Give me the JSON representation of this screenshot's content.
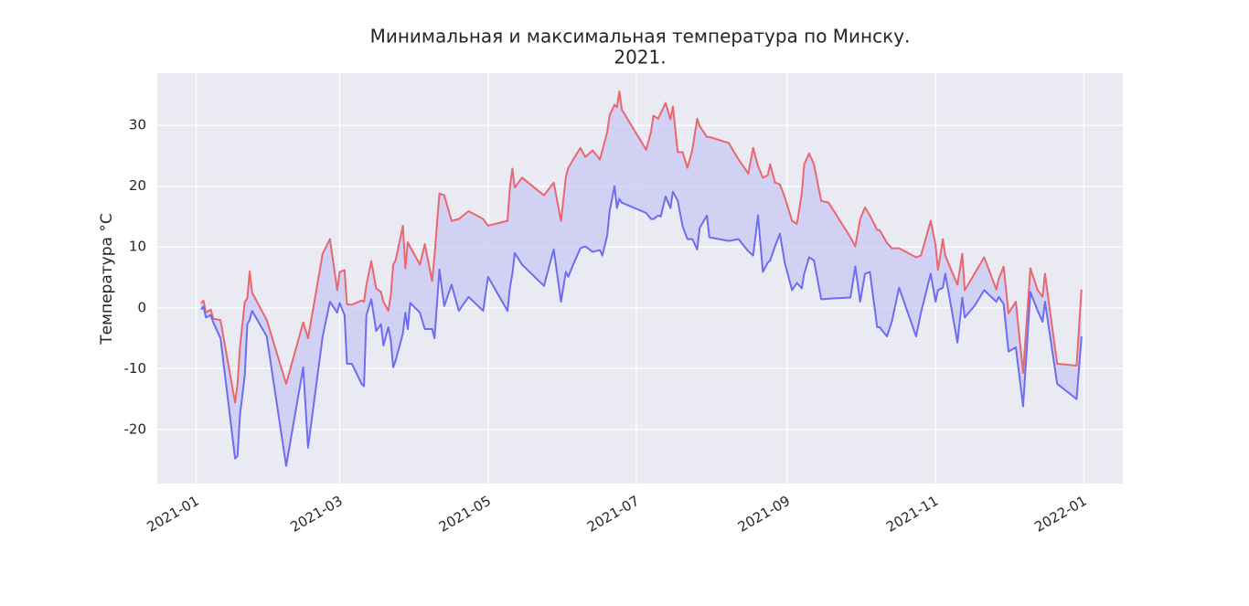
{
  "chart_data": {
    "type": "line",
    "title": [
      "Минимальная и максимальная температура по Минску.",
      "2021."
    ],
    "ylabel": "Температура °C",
    "fill_between": true,
    "fill_color": "#c8c8f4",
    "grid": true,
    "x": [
      "2021-01-03",
      "2021-01-04",
      "2021-01-05",
      "2021-01-07",
      "2021-01-08",
      "2021-01-11",
      "2021-01-17",
      "2021-01-18",
      "2021-01-19",
      "2021-01-21",
      "2021-01-22",
      "2021-01-23",
      "2021-01-24",
      "2021-01-30",
      "2021-02-07",
      "2021-02-14",
      "2021-02-16",
      "2021-02-22",
      "2021-02-25",
      "2021-02-28",
      "2021-03-01",
      "2021-03-03",
      "2021-03-04",
      "2021-03-06",
      "2021-03-10",
      "2021-03-11",
      "2021-03-12",
      "2021-03-14",
      "2021-03-16",
      "2021-03-18",
      "2021-03-19",
      "2021-03-21",
      "2021-03-22",
      "2021-03-23",
      "2021-03-24",
      "2021-03-27",
      "2021-03-28",
      "2021-03-29",
      "2021-03-30",
      "2021-04-03",
      "2021-04-05",
      "2021-04-08",
      "2021-04-09",
      "2021-04-11",
      "2021-04-13",
      "2021-04-16",
      "2021-04-19",
      "2021-04-23",
      "2021-04-29",
      "2021-05-01",
      "2021-05-09",
      "2021-05-10",
      "2021-05-11",
      "2021-05-12",
      "2021-05-15",
      "2021-05-24",
      "2021-05-28",
      "2021-05-31",
      "2021-06-02",
      "2021-06-03",
      "2021-06-05",
      "2021-06-08",
      "2021-06-10",
      "2021-06-13",
      "2021-06-16",
      "2021-06-17",
      "2021-06-19",
      "2021-06-20",
      "2021-06-22",
      "2021-06-23",
      "2021-06-24",
      "2021-06-25",
      "2021-07-05",
      "2021-07-07",
      "2021-07-08",
      "2021-07-10",
      "2021-07-11",
      "2021-07-13",
      "2021-07-15",
      "2021-07-16",
      "2021-07-18",
      "2021-07-20",
      "2021-07-22",
      "2021-07-24",
      "2021-07-26",
      "2021-07-27",
      "2021-07-30",
      "2021-07-31",
      "2021-08-08",
      "2021-08-12",
      "2021-08-16",
      "2021-08-18",
      "2021-08-20",
      "2021-08-22",
      "2021-08-24",
      "2021-08-25",
      "2021-08-27",
      "2021-08-29",
      "2021-08-31",
      "2021-09-03",
      "2021-09-05",
      "2021-09-07",
      "2021-09-08",
      "2021-09-10",
      "2021-09-12",
      "2021-09-15",
      "2021-09-18",
      "2021-09-27",
      "2021-09-29",
      "2021-10-01",
      "2021-10-03",
      "2021-10-05",
      "2021-10-08",
      "2021-10-09",
      "2021-10-12",
      "2021-10-14",
      "2021-10-17",
      "2021-10-24",
      "2021-10-26",
      "2021-10-30",
      "2021-11-01",
      "2021-11-02",
      "2021-11-04",
      "2021-11-05",
      "2021-11-10",
      "2021-11-12",
      "2021-11-13",
      "2021-11-17",
      "2021-11-21",
      "2021-11-26",
      "2021-11-27",
      "2021-11-29",
      "2021-12-01",
      "2021-12-04",
      "2021-12-07",
      "2021-12-10",
      "2021-12-13",
      "2021-12-15",
      "2021-12-16",
      "2021-12-21",
      "2021-12-29",
      "2021-12-31"
    ],
    "series": [
      {
        "color": "#ea6670",
        "values": [
          0.75,
          1.2,
          -0.8,
          -0.3,
          -1.8,
          -2,
          -15.6,
          -12.5,
          -6.5,
          1,
          1.5,
          6,
          2.5,
          -2,
          -12.5,
          -2.4,
          -5,
          8.9,
          11.3,
          2.9,
          5.9,
          6.2,
          0.6,
          0.5,
          1.2,
          1,
          3.8,
          7.7,
          3.2,
          2.6,
          1,
          -0.5,
          2,
          7.1,
          7.8,
          13.5,
          6.5,
          10.8,
          10,
          7.1,
          10.5,
          4.4,
          8.6,
          18.8,
          18.5,
          14.3,
          14.6,
          15.9,
          14.6,
          13.5,
          14.3,
          19.8,
          22.9,
          19.8,
          21.4,
          18.5,
          20.6,
          14.3,
          21.5,
          23,
          24.4,
          26.3,
          24.8,
          25.9,
          24.4,
          25.9,
          28.9,
          31.7,
          33.4,
          33,
          35.6,
          32.6,
          26,
          28.9,
          31.6,
          31.1,
          32,
          33.7,
          31,
          33.1,
          25.6,
          25.6,
          23,
          26,
          31.1,
          29.9,
          28.1,
          28.1,
          27.1,
          24.4,
          22.1,
          26.3,
          23.3,
          21.4,
          21.8,
          23.6,
          20.6,
          20.3,
          18.2,
          14.3,
          13.8,
          18.8,
          23.6,
          25.4,
          23.6,
          17.6,
          17.3,
          11.6,
          10.1,
          14.6,
          16.5,
          15.2,
          12.8,
          12.8,
          10.7,
          9.8,
          9.8,
          8.3,
          8.6,
          14.3,
          10.4,
          6.2,
          11.3,
          8.6,
          3.8,
          8.9,
          2.9,
          5.6,
          8.3,
          3,
          4.8,
          6.8,
          -0.9,
          1,
          -10.7,
          6.5,
          2.9,
          1.8,
          5.6,
          -9.2,
          -9.5,
          3
        ]
      },
      {
        "color": "#6e6cf0",
        "values": [
          -0.3,
          0.2,
          -1.6,
          -1.2,
          -2.4,
          -5,
          -24.8,
          -24.4,
          -17.7,
          -11,
          -2.7,
          -2,
          -0.5,
          -4.7,
          -26,
          -9.8,
          -23,
          -4.7,
          1,
          -0.8,
          0.8,
          -1.2,
          -9.2,
          -9.2,
          -12.5,
          -12.9,
          -1.2,
          1.4,
          -3.8,
          -2.7,
          -6.2,
          -3.2,
          -5.3,
          -9.8,
          -8.7,
          -4.2,
          -0.8,
          -3.5,
          0.8,
          -0.8,
          -3.5,
          -3.5,
          -5,
          6.3,
          0.3,
          3.8,
          -0.5,
          1.8,
          -0.5,
          5.1,
          -0.5,
          3.3,
          5.6,
          9,
          7.1,
          3.6,
          9.6,
          1,
          5.9,
          5.1,
          7.1,
          9.8,
          10.1,
          9.2,
          9.5,
          8.6,
          11.9,
          15.9,
          20,
          16.4,
          17.9,
          17.3,
          15.6,
          14.6,
          14.6,
          15.2,
          15,
          18.3,
          16.4,
          19.1,
          17.6,
          13.4,
          11.3,
          11.3,
          9.6,
          13.1,
          15.2,
          11.6,
          11,
          11.3,
          9.3,
          8.6,
          15.2,
          5.9,
          7.4,
          7.8,
          10.1,
          12.2,
          7.4,
          2.9,
          4.1,
          3.2,
          5.6,
          8.3,
          7.8,
          1.4,
          1.5,
          1.7,
          6.8,
          1,
          5.6,
          5.9,
          -3.2,
          -3.2,
          -4.7,
          -2.3,
          3.3,
          -4.7,
          -0.8,
          5.6,
          1,
          2.9,
          3.3,
          5.6,
          -5.7,
          1.7,
          -1.6,
          0.3,
          2.9,
          1,
          1.8,
          0.6,
          -7.2,
          -6.5,
          -16.2,
          2.6,
          -0.5,
          -2.3,
          1,
          -12.5,
          -15,
          -4.7
        ]
      }
    ],
    "xlim": [
      "2020-12-16",
      "2022-01-17"
    ],
    "xticks": [
      {
        "value": "2021-01-01",
        "label": "2021-01"
      },
      {
        "value": "2021-03-01",
        "label": "2021-03"
      },
      {
        "value": "2021-05-01",
        "label": "2021-05"
      },
      {
        "value": "2021-07-01",
        "label": "2021-07"
      },
      {
        "value": "2021-09-01",
        "label": "2021-09"
      },
      {
        "value": "2021-11-01",
        "label": "2021-11"
      },
      {
        "value": "2022-01-01",
        "label": "2022-01"
      }
    ],
    "ylim": [
      -28.9,
      38.6
    ],
    "yticks": [
      -20,
      -10,
      0,
      10,
      20,
      30
    ]
  }
}
